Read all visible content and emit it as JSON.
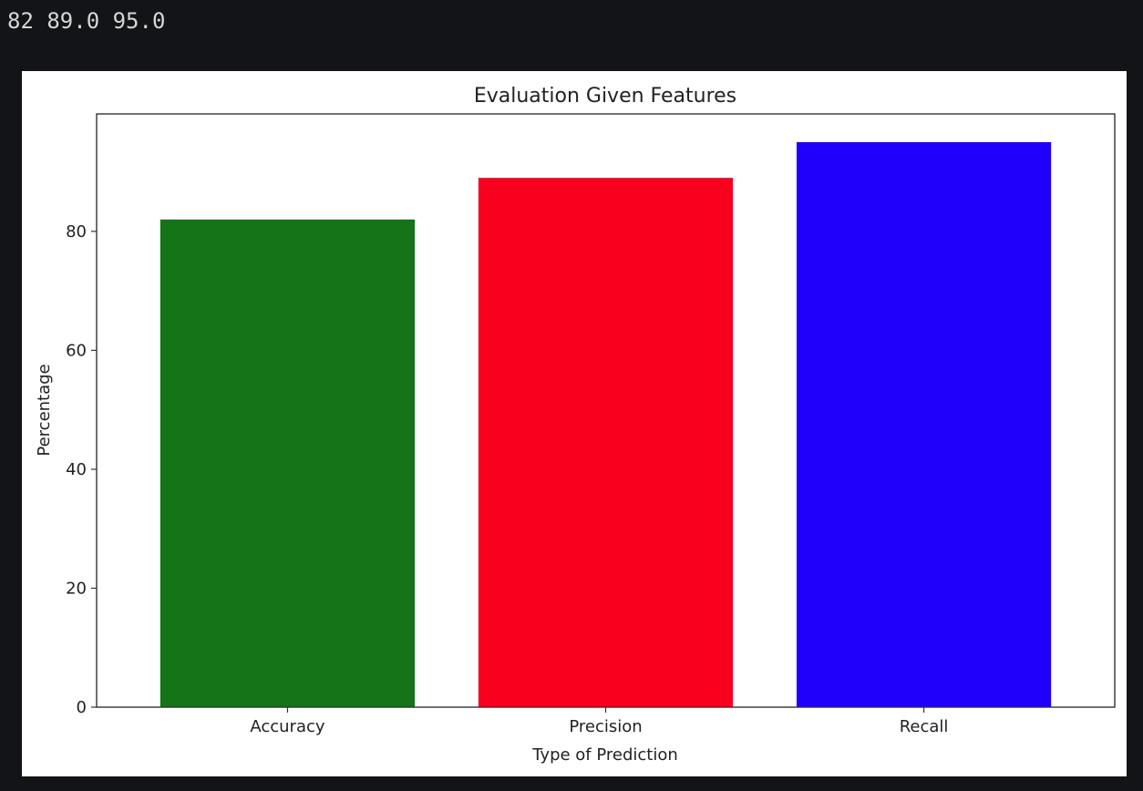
{
  "console": {
    "output_text": "82 89.0 95.0"
  },
  "chart_data": {
    "type": "bar",
    "title": "Evaluation Given Features",
    "xlabel": "Type of Prediction",
    "ylabel": "Percentage",
    "categories": [
      "Accuracy",
      "Precision",
      "Recall"
    ],
    "values": [
      82,
      89.0,
      95.0
    ],
    "colors": [
      "#137517",
      "#f8001e",
      "#1f00fb"
    ],
    "ylim": [
      0,
      99.75
    ],
    "yticks": [
      0,
      20,
      40,
      60,
      80
    ],
    "grid": false,
    "legend": "none"
  }
}
